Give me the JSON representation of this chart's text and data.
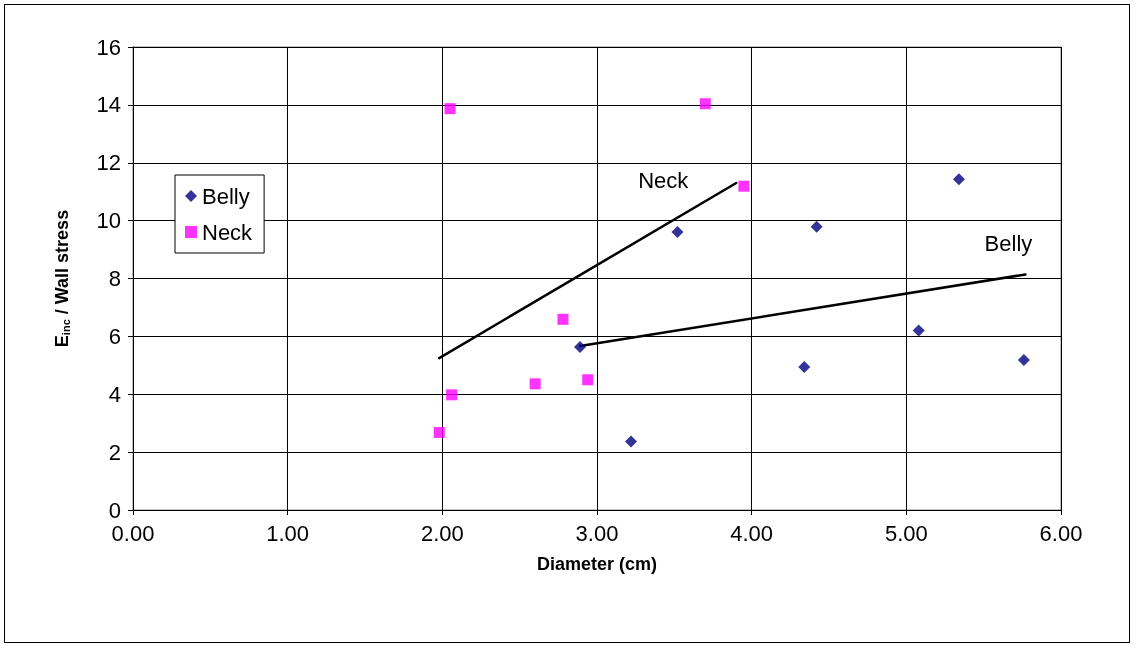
{
  "chart_data": {
    "type": "scatter",
    "xlabel": "Diameter (cm)",
    "ylabel": "E$_{inc}$ / Wall stress",
    "xlim": [
      0,
      6
    ],
    "xticks": [
      {
        "value": 0,
        "label": "0.00"
      },
      {
        "value": 1,
        "label": "1.00"
      },
      {
        "value": 2,
        "label": "2.00"
      },
      {
        "value": 3,
        "label": "3.00"
      },
      {
        "value": 4,
        "label": "4.00"
      },
      {
        "value": 5,
        "label": "5.00"
      },
      {
        "value": 6,
        "label": "6.00"
      }
    ],
    "ylim": [
      0,
      16
    ],
    "yticks": [
      0,
      2,
      4,
      6,
      8,
      10,
      12,
      14,
      16
    ],
    "grid": true,
    "legend": "left",
    "series": [
      {
        "name": "Belly",
        "color": "#000080",
        "marker": "diamond",
        "x": [
          2.89,
          3.22,
          3.52,
          4.34,
          4.42,
          5.08,
          5.34,
          5.76
        ],
        "values": [
          5.63,
          2.37,
          9.61,
          4.94,
          9.79,
          6.2,
          11.43,
          5.18
        ]
      },
      {
        "name": "Neck",
        "color": "#ff00ff",
        "marker": "square",
        "x": [
          1.98,
          2.06,
          2.05,
          2.6,
          2.78,
          2.94,
          3.7,
          3.95
        ],
        "values": [
          2.68,
          3.98,
          13.87,
          4.36,
          6.59,
          4.5,
          14.04,
          11.19
        ]
      },
      {
        "type": "line",
        "color": "#000000",
        "marker": "none",
        "line_style": "solid",
        "x": [
          1.98,
          3.9
        ],
        "values": [
          5.25,
          11.3
        ]
      },
      {
        "type": "line",
        "color": "#000000",
        "marker": "none",
        "line_style": "solid",
        "x": [
          2.89,
          5.77
        ],
        "values": [
          5.67,
          8.14
        ]
      }
    ],
    "annotations": [
      "Neck",
      "Belly"
    ]
  }
}
